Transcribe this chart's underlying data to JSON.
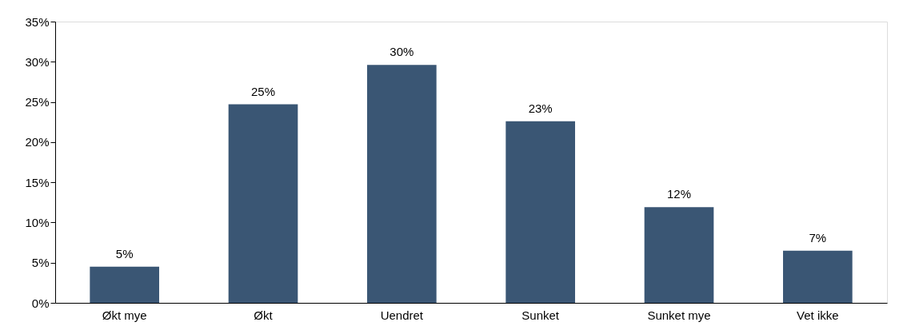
{
  "chart_data": {
    "type": "bar",
    "categories": [
      "Økt mye",
      "Økt",
      "Uendret",
      "Sunket",
      "Sunket mye",
      "Vet ikke"
    ],
    "values": [
      4.5,
      24.7,
      29.6,
      22.6,
      11.9,
      6.5
    ],
    "value_labels": [
      "5%",
      "25%",
      "30%",
      "23%",
      "12%",
      "7%"
    ],
    "color": "#3a5674",
    "ylim": [
      0,
      35
    ],
    "yticks": [
      {
        "value": 0,
        "label": "0%"
      },
      {
        "value": 5,
        "label": "5%"
      },
      {
        "value": 10,
        "label": "10%"
      },
      {
        "value": 15,
        "label": "15%"
      },
      {
        "value": 20,
        "label": "20%"
      },
      {
        "value": 25,
        "label": "25%"
      },
      {
        "value": 30,
        "label": "30%"
      },
      {
        "value": 35,
        "label": "35%"
      }
    ],
    "grid": false
  }
}
